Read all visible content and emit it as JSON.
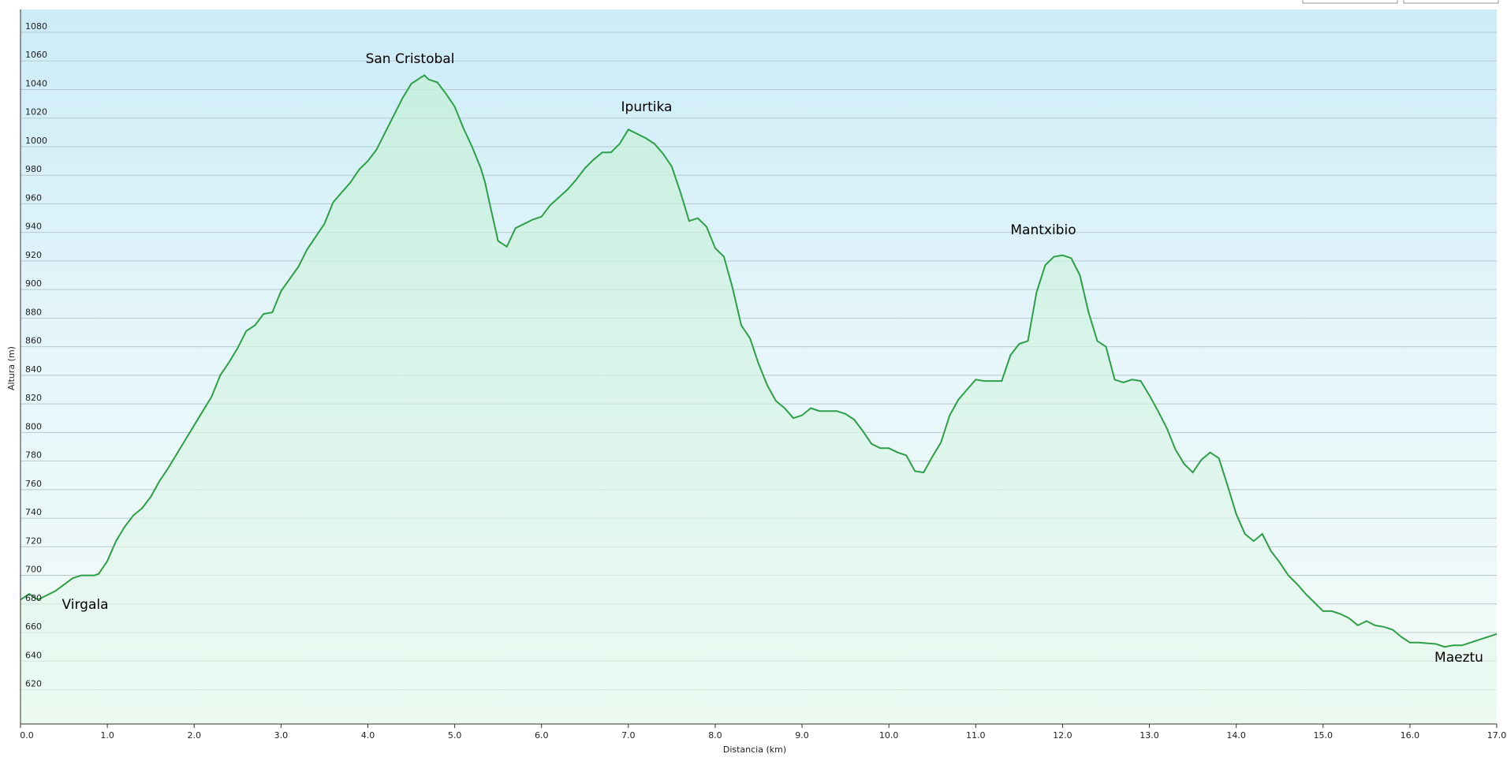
{
  "chart_data": {
    "type": "area",
    "xlabel": "Distancia  (km)",
    "ylabel": "Altura (m)",
    "color": "#2e9e48",
    "fill": "#c8f0dc",
    "grid": true,
    "xlim": [
      0,
      17.0
    ],
    "ylim": [
      596,
      1096
    ],
    "xticks": [
      {
        "value": 0,
        "label": "0.0"
      },
      {
        "value": 1,
        "label": "1.0"
      },
      {
        "value": 2,
        "label": "2.0"
      },
      {
        "value": 3,
        "label": "3.0"
      },
      {
        "value": 4,
        "label": "4.0"
      },
      {
        "value": 5,
        "label": "5.0"
      },
      {
        "value": 6,
        "label": "6.0"
      },
      {
        "value": 7,
        "label": "7.0"
      },
      {
        "value": 8,
        "label": "8.0"
      },
      {
        "value": 9,
        "label": "9.0"
      },
      {
        "value": 10,
        "label": "10.0"
      },
      {
        "value": 11,
        "label": "11.0"
      },
      {
        "value": 12,
        "label": "12.0"
      },
      {
        "value": 13,
        "label": "13.0"
      },
      {
        "value": 14,
        "label": "14.0"
      },
      {
        "value": 15,
        "label": "15.0"
      },
      {
        "value": 16,
        "label": "16.0"
      },
      {
        "value": 17,
        "label": "17.0"
      }
    ],
    "yticks": [
      620,
      640,
      660,
      680,
      700,
      720,
      740,
      760,
      780,
      800,
      820,
      840,
      860,
      880,
      900,
      920,
      940,
      960,
      980,
      1000,
      1020,
      1040,
      1060,
      1080
    ],
    "annotations": [
      "San Cristobal",
      "Ipurtika",
      "Mantxibio",
      "Virgala",
      "Maeztu"
    ],
    "x": [
      0,
      0.1,
      0.2,
      0.4,
      0.6,
      0.7,
      0.85,
      0.9,
      1.0,
      1.1,
      1.2,
      1.3,
      1.4,
      1.5,
      1.6,
      1.7,
      1.8,
      2.0,
      2.1,
      2.2,
      2.3,
      2.4,
      2.5,
      2.6,
      2.7,
      2.8,
      2.9,
      3.0,
      3.2,
      3.3,
      3.4,
      3.5,
      3.6,
      3.7,
      3.8,
      3.9,
      4.0,
      4.1,
      4.2,
      4.3,
      4.4,
      4.5,
      4.6,
      4.65,
      4.7,
      4.8,
      4.9,
      5.0,
      5.1,
      5.2,
      5.3,
      5.35,
      5.4,
      5.5,
      5.6,
      5.7,
      5.8,
      5.9,
      6.0,
      6.1,
      6.3,
      6.4,
      6.5,
      6.6,
      6.7,
      6.8,
      6.9,
      7.0,
      7.1,
      7.2,
      7.3,
      7.4,
      7.5,
      7.6,
      7.7,
      7.8,
      7.9,
      8.0,
      8.1,
      8.2,
      8.3,
      8.4,
      8.5,
      8.6,
      8.7,
      8.8,
      8.9,
      9.0,
      9.1,
      9.2,
      9.3,
      9.4,
      9.5,
      9.6,
      9.7,
      9.8,
      9.9,
      10.0,
      10.1,
      10.2,
      10.3,
      10.4,
      10.5,
      10.6,
      10.7,
      10.8,
      10.9,
      11.0,
      11.1,
      11.2,
      11.3,
      11.4,
      11.5,
      11.6,
      11.7,
      11.8,
      11.9,
      12.0,
      12.1,
      12.2,
      12.3,
      12.4,
      12.5,
      12.6,
      12.7,
      12.8,
      12.9,
      13.0,
      13.1,
      13.2,
      13.3,
      13.4,
      13.5,
      13.6,
      13.7,
      13.8,
      13.9,
      14.0,
      14.1,
      14.2,
      14.3,
      14.4,
      14.5,
      14.6,
      14.7,
      14.8,
      14.9,
      15.0,
      15.1,
      15.2,
      15.3,
      15.4,
      15.5,
      15.6,
      15.7,
      15.8,
      15.9,
      16.0,
      16.1,
      16.3,
      16.4,
      16.5,
      16.6,
      16.7,
      16.8,
      16.9,
      17.0
    ],
    "values": [
      683,
      687,
      683,
      689,
      698,
      700,
      700,
      701,
      710,
      724,
      734,
      742,
      747,
      755,
      766,
      775,
      785,
      805,
      815,
      825,
      840,
      849,
      859,
      871,
      875,
      883,
      884,
      899,
      916,
      928,
      937,
      946,
      961,
      968,
      975,
      984,
      990,
      998,
      1010,
      1022,
      1034,
      1044,
      1048,
      1050,
      1047,
      1045,
      1037,
      1028,
      1013,
      1000,
      985,
      975,
      961,
      934,
      930,
      943,
      946,
      949,
      951,
      959,
      970,
      977,
      985,
      991,
      996,
      996,
      1002,
      1012,
      1009,
      1006,
      1002,
      995,
      986,
      968,
      948,
      950,
      944,
      929,
      923,
      901,
      875,
      866,
      848,
      833,
      822,
      817,
      810,
      812,
      817,
      815,
      815,
      815,
      813,
      809,
      801,
      792,
      789,
      789,
      786,
      784,
      773,
      772,
      783,
      793,
      812,
      823,
      830,
      837,
      836,
      836,
      836,
      854,
      862,
      864,
      898,
      917,
      923,
      924,
      922,
      910,
      884,
      864,
      860,
      837,
      835,
      837,
      836,
      826,
      815,
      803,
      788,
      778,
      772,
      781,
      786,
      782,
      763,
      743,
      729,
      724,
      729,
      717,
      709,
      700,
      694,
      687,
      681,
      675,
      675,
      673,
      670,
      665,
      668,
      665,
      664,
      662,
      657,
      653,
      653,
      652,
      650,
      651,
      651,
      653,
      655,
      657,
      659
    ]
  }
}
